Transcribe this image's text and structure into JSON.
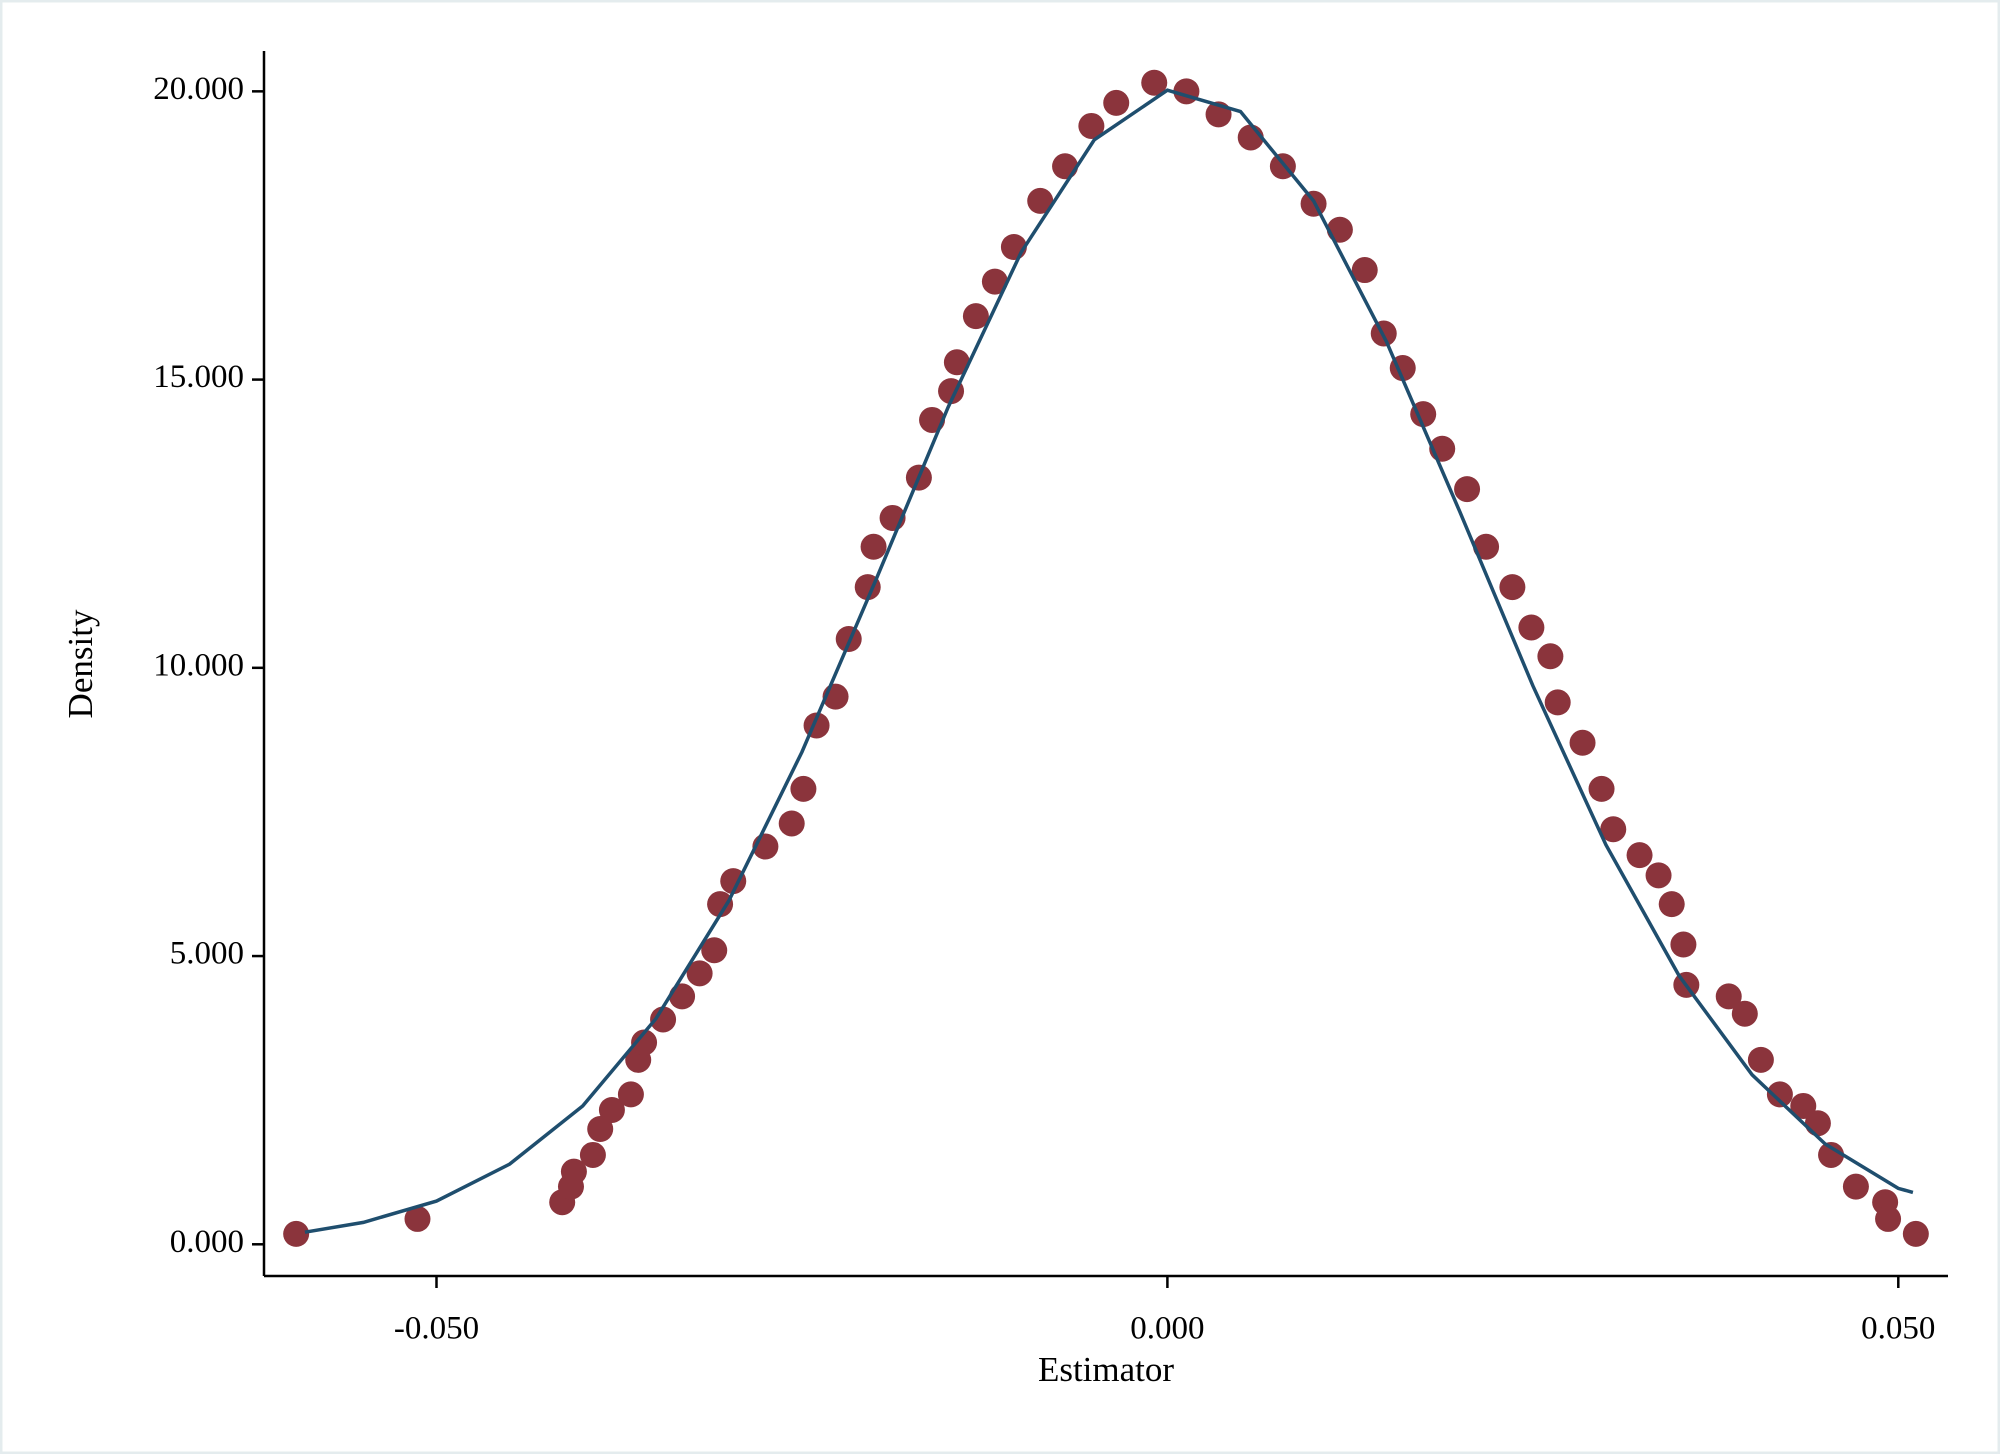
{
  "chart_data": {
    "type": "scatter",
    "xlabel": "Estimator",
    "ylabel": "Density",
    "xlim": [
      -0.0618,
      0.0534
    ],
    "ylim": [
      -0.55,
      20.7
    ],
    "xticks": [
      {
        "value": -0.05,
        "label": "-0.050"
      },
      {
        "value": 0,
        "label": "0.000"
      },
      {
        "value": 0.05,
        "label": "0.050"
      }
    ],
    "yticks": [
      {
        "value": 0,
        "label": "0.000"
      },
      {
        "value": 5,
        "label": "5.000"
      },
      {
        "value": 10,
        "label": "10.000"
      },
      {
        "value": 15,
        "label": "15.000"
      },
      {
        "value": 20,
        "label": "20.000"
      }
    ],
    "series": [
      {
        "mode": "markers",
        "color": "#8b343c",
        "x": [
          -0.0596,
          -0.0513,
          -0.0414,
          -0.0408,
          -0.0406,
          -0.0393,
          -0.0388,
          -0.038,
          -0.0367,
          -0.0362,
          -0.0358,
          -0.0345,
          -0.0332,
          -0.032,
          -0.031,
          -0.0306,
          -0.0297,
          -0.0275,
          -0.0257,
          -0.0249,
          -0.024,
          -0.0227,
          -0.0218,
          -0.0205,
          -0.0201,
          -0.0188,
          -0.017,
          -0.0161,
          -0.0148,
          -0.0144,
          -0.0131,
          -0.0118,
          -0.0105,
          -0.0087,
          -0.007,
          -0.0052,
          -0.0035,
          -0.0009,
          0.0013,
          0.0035,
          0.0057,
          0.0079,
          0.01,
          0.0118,
          0.0135,
          0.0148,
          0.0161,
          0.0175,
          0.0188,
          0.0205,
          0.0218,
          0.0236,
          0.0249,
          0.0262,
          0.0267,
          0.0284,
          0.0297,
          0.0305,
          0.0323,
          0.0336,
          0.0345,
          0.0353,
          0.0355,
          0.0384,
          0.0395,
          0.0406,
          0.0419,
          0.0435,
          0.0445,
          0.0454,
          0.0471,
          0.0491,
          0.0493,
          0.0512
        ],
        "values": [
          0.18,
          0.44,
          0.73,
          1.0,
          1.26,
          1.55,
          2.0,
          2.33,
          2.6,
          3.2,
          3.5,
          3.9,
          4.3,
          4.7,
          5.1,
          5.9,
          6.3,
          6.9,
          7.3,
          7.9,
          9.0,
          9.5,
          10.5,
          11.4,
          12.1,
          12.6,
          13.3,
          14.3,
          14.8,
          15.3,
          16.1,
          16.7,
          17.3,
          18.1,
          18.7,
          19.4,
          19.8,
          20.15,
          20.0,
          19.6,
          19.2,
          18.7,
          18.05,
          17.6,
          16.9,
          15.8,
          15.2,
          14.4,
          13.8,
          13.1,
          12.1,
          11.4,
          10.7,
          10.2,
          9.4,
          8.7,
          7.9,
          7.2,
          6.75,
          6.4,
          5.9,
          5.2,
          4.5,
          4.3,
          4.0,
          3.2,
          2.6,
          2.4,
          2.1,
          1.55,
          1.0,
          0.73,
          0.44,
          0.18
        ]
      },
      {
        "mode": "line",
        "color": "#1f4e6e",
        "x": [
          -0.059,
          -0.055,
          -0.05,
          -0.045,
          -0.04,
          -0.035,
          -0.03,
          -0.025,
          -0.02,
          -0.015,
          -0.01,
          -0.005,
          0,
          0.005,
          0.01,
          0.015,
          0.02,
          0.025,
          0.03,
          0.035,
          0.04,
          0.045,
          0.05,
          0.051
        ],
        "values": [
          0.21,
          0.38,
          0.75,
          1.39,
          2.4,
          3.91,
          5.96,
          8.54,
          11.49,
          14.52,
          17.21,
          19.16,
          20.02,
          19.65,
          18.1,
          15.65,
          12.71,
          9.69,
          6.93,
          4.66,
          2.94,
          1.74,
          0.97,
          0.9
        ]
      }
    ]
  }
}
